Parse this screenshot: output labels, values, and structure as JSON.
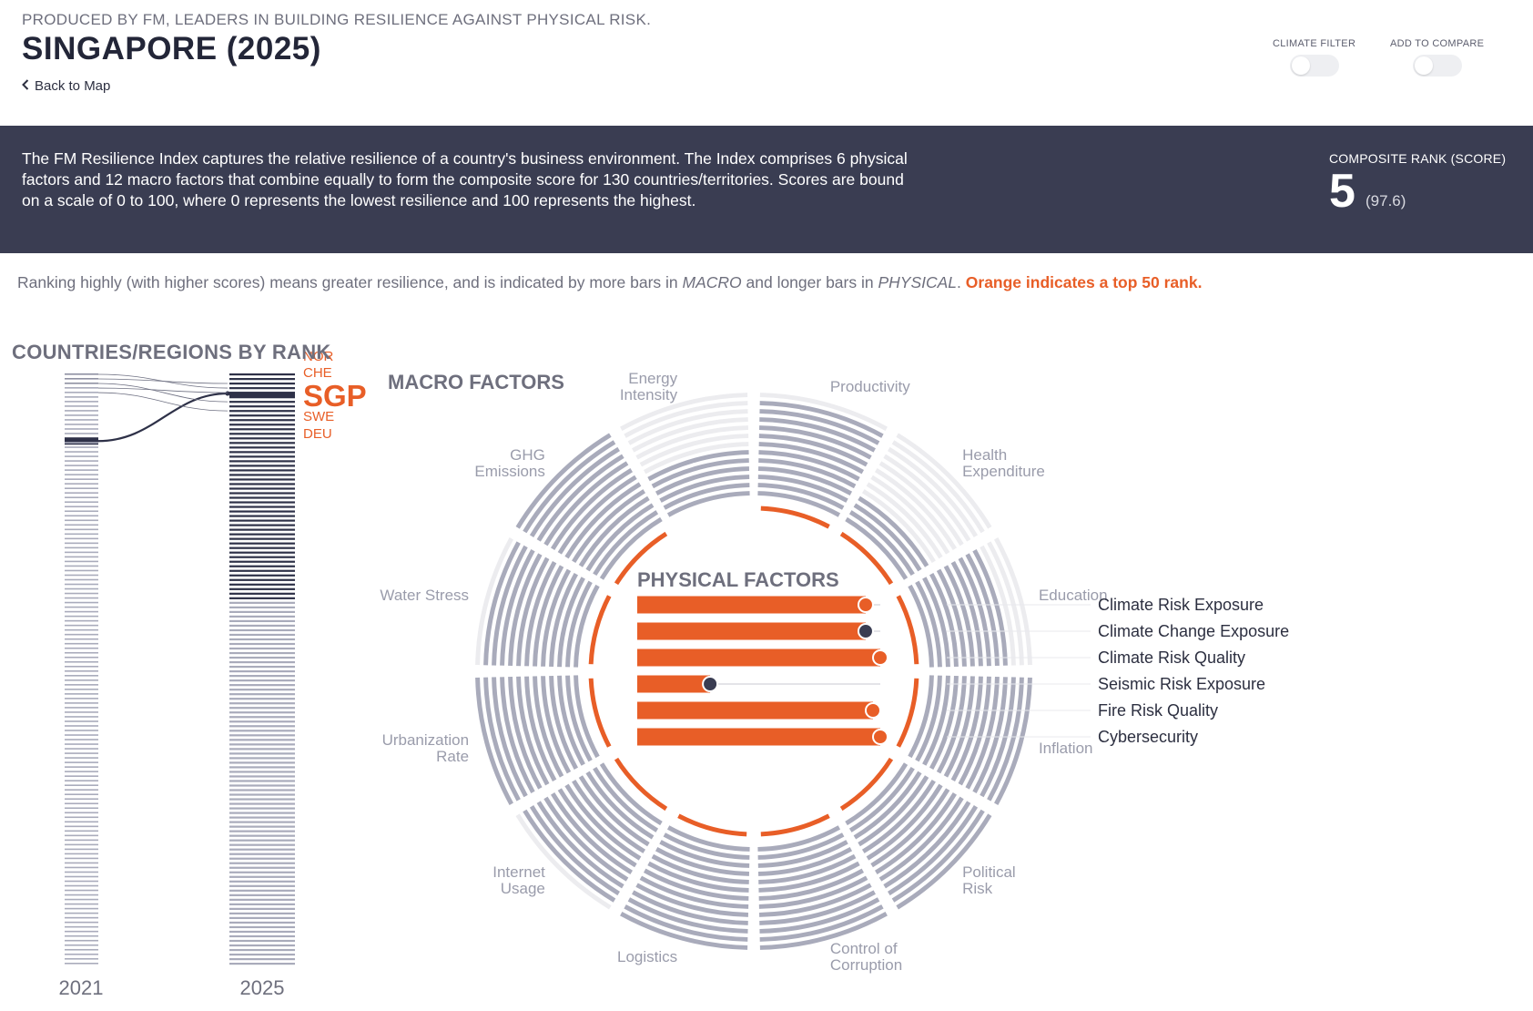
{
  "header": {
    "produced_by": "PRODUCED BY FM, LEADERS IN BUILDING RESILIENCE AGAINST PHYSICAL RISK.",
    "title": "SINGAPORE (2025)",
    "back_label": "Back to Map",
    "climate_filter_label": "CLIMATE FILTER",
    "add_compare_label": "ADD TO COMPARE"
  },
  "banner": {
    "description": "The FM Resilience Index captures the relative resilience of a country's business environment. The Index comprises 6 physical factors and 12 macro factors that combine equally to form the composite score for 130 countries/territories. Scores are bound on a scale of 0 to 100, where 0 represents the lowest resilience and 100 represents the highest.",
    "rank_label": "COMPOSITE RANK (SCORE)",
    "rank": "5",
    "score": "(97.6)"
  },
  "legend": {
    "part1": "Ranking highly (with higher scores) means greater resilience, and is indicated by more bars in ",
    "macro": "MACRO",
    "part2": " and longer bars in ",
    "physical": "PHYSICAL",
    "part3": ". ",
    "orange_note": "Orange indicates a top 50 rank."
  },
  "rank_panel": {
    "title": "COUNTRIES/REGIONS BY RANK",
    "year_left": "2021",
    "year_right": "2025",
    "total": 130,
    "rank_2021": 15,
    "rank_2025": 5,
    "neighbors": [
      "NOR",
      "CHE",
      "SGP",
      "SWE",
      "DEU"
    ],
    "highlight": "SGP",
    "colors": {
      "dark": "#2e3148",
      "light": "#a9abbb",
      "orange": "#e85e27"
    }
  },
  "macro": {
    "title": "MACRO FACTORS",
    "max_bars": 13,
    "factors": [
      {
        "label": "Productivity",
        "bars": 12,
        "top50": true
      },
      {
        "label": "Health Expenditure",
        "bars": 4,
        "top50": true
      },
      {
        "label": "Education",
        "bars": 10,
        "top50": true
      },
      {
        "label": "Inflation",
        "bars": 13,
        "top50": true
      },
      {
        "label": "Political Risk",
        "bars": 13,
        "top50": true
      },
      {
        "label": "Control of Corruption",
        "bars": 13,
        "top50": true
      },
      {
        "label": "Logistics",
        "bars": 13,
        "top50": true
      },
      {
        "label": "Internet Usage",
        "bars": 12,
        "top50": true
      },
      {
        "label": "Urbanization Rate",
        "bars": 13,
        "top50": true
      },
      {
        "label": "Water Stress",
        "bars": 12,
        "top50": true
      },
      {
        "label": "GHG Emissions",
        "bars": 13,
        "top50": true
      },
      {
        "label": "Energy Intensity",
        "bars": 6,
        "top50": false
      }
    ]
  },
  "physical": {
    "title": "PHYSICAL FACTORS",
    "factors": [
      {
        "label": "Climate Risk Exposure",
        "score": 94,
        "top50": true
      },
      {
        "label": "Climate Change Exposure",
        "score": 94,
        "top50": false
      },
      {
        "label": "Climate Risk Quality",
        "score": 100,
        "top50": true
      },
      {
        "label": "Seismic Risk Exposure",
        "score": 30,
        "top50": false
      },
      {
        "label": "Fire Risk Quality",
        "score": 97,
        "top50": true
      },
      {
        "label": "Cybersecurity",
        "score": 100,
        "top50": true
      }
    ]
  },
  "colors": {
    "orange": "#e85e27",
    "navy": "#3a3d52",
    "bar_gray": "#a9abbb",
    "bar_faint": "#ececef"
  }
}
